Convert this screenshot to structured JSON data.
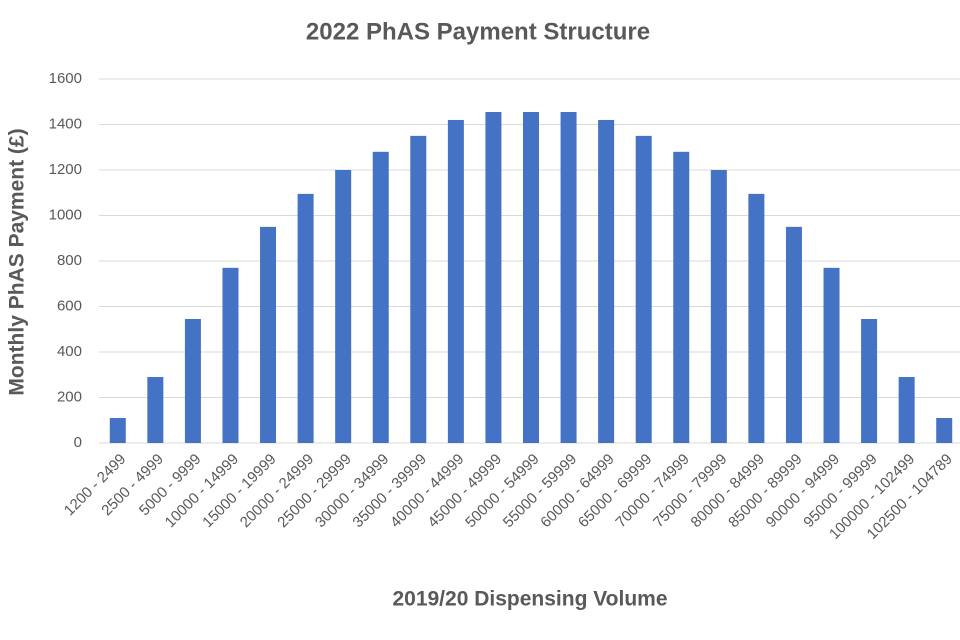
{
  "chart_data": {
    "type": "bar",
    "title": "2022 PhAS Payment Structure",
    "x_label": "2019/20 Dispensing Volume",
    "y_label": "Monthly PhAS Payment (£)",
    "categories": [
      "1200 - 2499",
      "2500 - 4999",
      "5000 - 9999",
      "10000 - 14999",
      "15000 - 19999",
      "20000 - 24999",
      "25000 - 29999",
      "30000 - 34999",
      "35000 - 39999",
      "40000 - 44999",
      "45000 - 49999",
      "50000 - 54999",
      "55000 - 59999",
      "60000 - 64999",
      "65000 - 69999",
      "70000 - 74999",
      "75000 - 79999",
      "80000 - 84999",
      "85000 - 89999",
      "90000 - 94999",
      "95000 - 99999",
      "100000 - 102499",
      "102500 - 104789"
    ],
    "values": [
      110,
      290,
      545,
      770,
      950,
      1095,
      1200,
      1280,
      1350,
      1420,
      1455,
      1455,
      1455,
      1420,
      1350,
      1280,
      1200,
      1095,
      950,
      770,
      545,
      290,
      110
    ],
    "color": "#4472c4",
    "ylim": [
      0,
      1600
    ],
    "yticks": [
      0,
      200,
      400,
      600,
      800,
      1000,
      1200,
      1400,
      1600
    ],
    "grid": true
  }
}
